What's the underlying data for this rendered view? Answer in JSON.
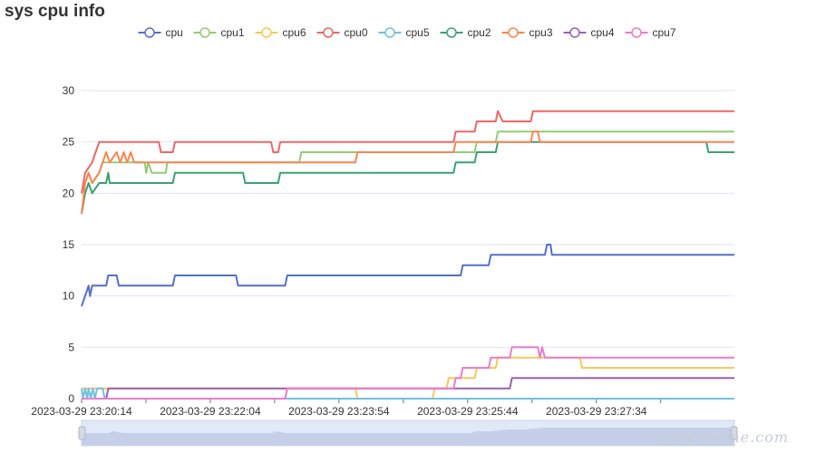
{
  "chart_data": {
    "type": "line",
    "title": "sys cpu info",
    "xlabel": "",
    "ylabel": "",
    "ylim": [
      0,
      30
    ],
    "y_ticks": [
      0,
      5,
      10,
      15,
      20,
      25,
      30
    ],
    "x_tick_labels": [
      "2023-03-29 23:20:14",
      "2023-03-29 23:22:04",
      "2023-03-29 23:23:54",
      "2023-03-29 23:25:44",
      "2023-03-29 23:27:34"
    ],
    "x_range_minutes": [
      0,
      9.3
    ],
    "x_tick_minutes": [
      0,
      1.8333,
      3.6667,
      5.5,
      7.3333
    ],
    "grid": true,
    "legend_position": "top-center",
    "series": [
      {
        "name": "cpu",
        "color": "#5470c6",
        "points": [
          [
            0,
            9
          ],
          [
            0.05,
            10
          ],
          [
            0.1,
            11
          ],
          [
            0.12,
            10
          ],
          [
            0.15,
            11
          ],
          [
            0.35,
            11
          ],
          [
            0.38,
            12
          ],
          [
            0.5,
            12
          ],
          [
            0.53,
            11
          ],
          [
            1.3,
            11
          ],
          [
            1.33,
            12
          ],
          [
            2.2,
            12
          ],
          [
            2.23,
            11
          ],
          [
            2.9,
            11
          ],
          [
            2.93,
            12
          ],
          [
            5.4,
            12
          ],
          [
            5.43,
            13
          ],
          [
            5.8,
            13
          ],
          [
            5.83,
            14
          ],
          [
            6.6,
            14
          ],
          [
            6.63,
            15
          ],
          [
            6.68,
            15
          ],
          [
            6.7,
            14
          ],
          [
            9.3,
            14
          ]
        ]
      },
      {
        "name": "cpu1",
        "color": "#91cc75",
        "points": [
          [
            0,
            20
          ],
          [
            0.05,
            21
          ],
          [
            0.1,
            22
          ],
          [
            0.15,
            21
          ],
          [
            0.25,
            22
          ],
          [
            0.3,
            23
          ],
          [
            0.9,
            23
          ],
          [
            0.92,
            22
          ],
          [
            0.95,
            23
          ],
          [
            1.0,
            22
          ],
          [
            1.2,
            22
          ],
          [
            1.22,
            23
          ],
          [
            3.1,
            23
          ],
          [
            3.13,
            24
          ],
          [
            5.6,
            24
          ],
          [
            5.63,
            25
          ],
          [
            5.9,
            25
          ],
          [
            5.93,
            26
          ],
          [
            9.3,
            26
          ]
        ]
      },
      {
        "name": "cpu6",
        "color": "#fac858",
        "points": [
          [
            0,
            1
          ],
          [
            3.9,
            1
          ],
          [
            3.93,
            0
          ],
          [
            5.0,
            0
          ],
          [
            5.03,
            1
          ],
          [
            5.2,
            1
          ],
          [
            5.23,
            2
          ],
          [
            5.6,
            2
          ],
          [
            5.63,
            3
          ],
          [
            5.9,
            3
          ],
          [
            5.93,
            4
          ],
          [
            7.1,
            4
          ],
          [
            7.13,
            3
          ],
          [
            9.3,
            3
          ]
        ]
      },
      {
        "name": "cpu0",
        "color": "#ee6666",
        "points": [
          [
            0,
            20
          ],
          [
            0.05,
            22
          ],
          [
            0.15,
            23
          ],
          [
            0.2,
            24
          ],
          [
            0.25,
            25
          ],
          [
            1.1,
            25
          ],
          [
            1.13,
            24
          ],
          [
            1.3,
            24
          ],
          [
            1.33,
            25
          ],
          [
            2.7,
            25
          ],
          [
            2.73,
            24
          ],
          [
            2.8,
            24
          ],
          [
            2.83,
            25
          ],
          [
            5.3,
            25
          ],
          [
            5.33,
            26
          ],
          [
            5.6,
            26
          ],
          [
            5.63,
            27
          ],
          [
            5.9,
            27
          ],
          [
            5.93,
            28
          ],
          [
            6.0,
            27
          ],
          [
            6.4,
            27
          ],
          [
            6.43,
            28
          ],
          [
            9.3,
            28
          ]
        ]
      },
      {
        "name": "cpu5",
        "color": "#73c0de",
        "points": [
          [
            0,
            1
          ],
          [
            0.02,
            0
          ],
          [
            0.05,
            1
          ],
          [
            0.08,
            0
          ],
          [
            0.1,
            1
          ],
          [
            0.13,
            0
          ],
          [
            0.16,
            1
          ],
          [
            0.19,
            0
          ],
          [
            0.22,
            1
          ],
          [
            0.3,
            1
          ],
          [
            0.33,
            0
          ],
          [
            0.4,
            0
          ],
          [
            9.3,
            0
          ]
        ]
      },
      {
        "name": "cpu2",
        "color": "#3ba272",
        "points": [
          [
            0,
            18
          ],
          [
            0.05,
            20
          ],
          [
            0.1,
            21
          ],
          [
            0.15,
            20
          ],
          [
            0.25,
            21
          ],
          [
            0.35,
            21
          ],
          [
            0.38,
            22
          ],
          [
            0.4,
            21
          ],
          [
            1.3,
            21
          ],
          [
            1.33,
            22
          ],
          [
            2.3,
            22
          ],
          [
            2.33,
            21
          ],
          [
            2.8,
            21
          ],
          [
            2.83,
            22
          ],
          [
            5.3,
            22
          ],
          [
            5.33,
            23
          ],
          [
            5.6,
            23
          ],
          [
            5.63,
            24
          ],
          [
            5.9,
            24
          ],
          [
            5.93,
            25
          ],
          [
            8.9,
            25
          ],
          [
            8.93,
            24
          ],
          [
            9.3,
            24
          ]
        ]
      },
      {
        "name": "cpu3",
        "color": "#fc8452",
        "points": [
          [
            0,
            18
          ],
          [
            0.05,
            21
          ],
          [
            0.1,
            22
          ],
          [
            0.15,
            21
          ],
          [
            0.25,
            22
          ],
          [
            0.3,
            23
          ],
          [
            0.35,
            24
          ],
          [
            0.4,
            23
          ],
          [
            0.5,
            24
          ],
          [
            0.55,
            23
          ],
          [
            0.6,
            24
          ],
          [
            0.65,
            23
          ],
          [
            0.7,
            24
          ],
          [
            0.75,
            23
          ],
          [
            3.9,
            23
          ],
          [
            3.93,
            24
          ],
          [
            5.3,
            24
          ],
          [
            5.33,
            25
          ],
          [
            6.4,
            25
          ],
          [
            6.43,
            26
          ],
          [
            6.5,
            26
          ],
          [
            6.53,
            25
          ],
          [
            9.3,
            25
          ]
        ]
      },
      {
        "name": "cpu4",
        "color": "#9a60b4",
        "points": [
          [
            0,
            0
          ],
          [
            0.35,
            0
          ],
          [
            0.38,
            1
          ],
          [
            5.6,
            1
          ],
          [
            5.63,
            1
          ],
          [
            6.1,
            1
          ],
          [
            6.13,
            2
          ],
          [
            9.3,
            2
          ]
        ]
      },
      {
        "name": "cpu7",
        "color": "#ea7ccc",
        "points": [
          [
            0,
            0
          ],
          [
            2.9,
            0
          ],
          [
            2.93,
            1
          ],
          [
            5.3,
            1
          ],
          [
            5.33,
            2
          ],
          [
            5.4,
            2
          ],
          [
            5.43,
            3
          ],
          [
            5.8,
            3
          ],
          [
            5.83,
            4
          ],
          [
            6.1,
            4
          ],
          [
            6.13,
            5
          ],
          [
            6.5,
            5
          ],
          [
            6.53,
            4
          ],
          [
            6.56,
            5
          ],
          [
            6.6,
            4
          ],
          [
            9.3,
            4
          ]
        ]
      }
    ]
  },
  "watermark": "TestErhome.com"
}
